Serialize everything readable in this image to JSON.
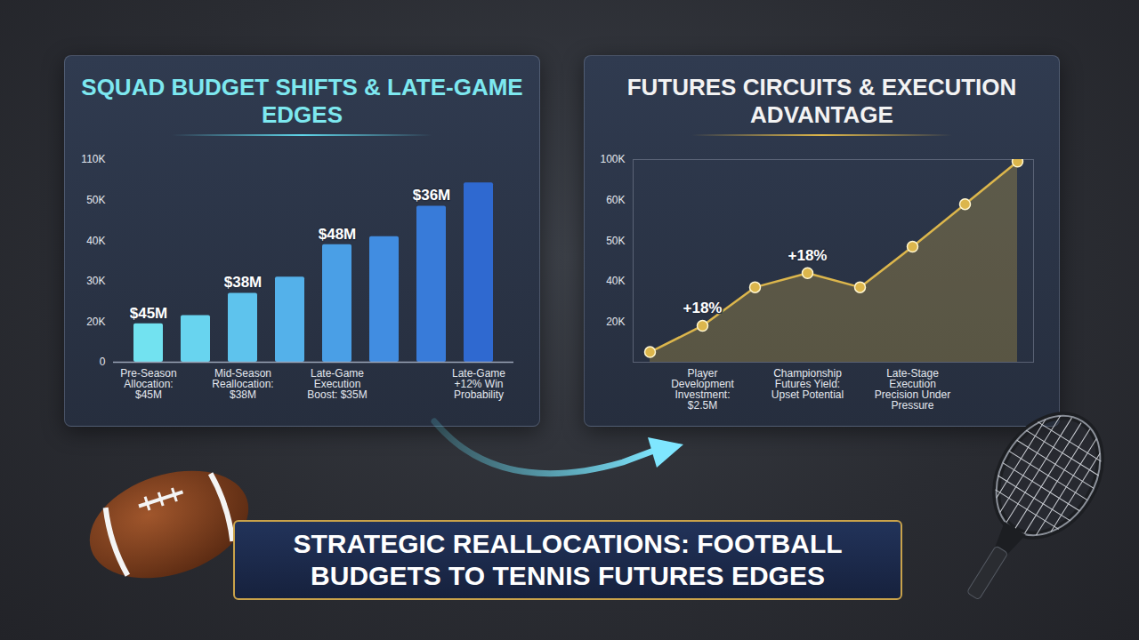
{
  "title": "STRATEGIC REALLOCATIONS: FOOTBALL BUDGETS TO TENNIS FUTURES EDGES",
  "chart_data": [
    {
      "type": "bar",
      "title": "SQUAD BUDGET SHIFTS & LATE-GAME EDGES",
      "categories": [
        "Pre-Season Allocation: $45M",
        null,
        "Mid-Season Reallocation: $38M",
        null,
        "Late-Game Execution Boost: $35M",
        null,
        null,
        "Late-Game +12% Win Probability"
      ],
      "values": [
        19000,
        21500,
        27000,
        31000,
        39000,
        41000,
        48500,
        75500
      ],
      "colors": [
        "#72e2f0",
        "#68d4ef",
        "#5ec3ed",
        "#54b1ea",
        "#4a9fe6",
        "#418de1",
        "#387bd9",
        "#2f69d0"
      ],
      "annotations": [
        {
          "index": 0,
          "text": "$45M"
        },
        {
          "index": 2,
          "text": "$38M"
        },
        {
          "index": 4,
          "text": "$48M"
        },
        {
          "index": 6,
          "text": "$36M"
        }
      ],
      "ylim": [
        0,
        110000
      ],
      "yticks": [
        0,
        {
          "value": 20000,
          "label": "20K"
        },
        {
          "value": 30000,
          "label": "30K"
        },
        {
          "value": 40000,
          "label": "40K"
        },
        {
          "value": 50000,
          "label": "50K"
        },
        {
          "value": 110000,
          "label": "110K"
        }
      ],
      "grid": false
    },
    {
      "type": "line",
      "title": "FUTURES CIRCUITS & EXECUTION ADVANTAGE",
      "categories": [
        null,
        "Player Development Investment: $2.5M",
        null,
        "Championship Futures Yield: Upset Potential",
        null,
        "Late-Stage Execution Precision Under Pressure",
        null,
        null
      ],
      "values": [
        5000,
        18000,
        37000,
        42000,
        37000,
        48500,
        59000,
        98000
      ],
      "color": "#dcb64c",
      "marker": "circle",
      "annotations": [
        {
          "index": 1,
          "text": "+18%"
        },
        {
          "index": 3,
          "text": "+18%"
        }
      ],
      "ylim": [
        0,
        100000
      ],
      "yticks": [
        {
          "value": 20000,
          "label": "20K"
        },
        {
          "value": 40000,
          "label": "40K"
        },
        {
          "value": 50000,
          "label": "50K"
        },
        {
          "value": 60000,
          "label": "60K"
        },
        {
          "value": 100000,
          "label": "100K"
        }
      ],
      "grid": false
    }
  ]
}
